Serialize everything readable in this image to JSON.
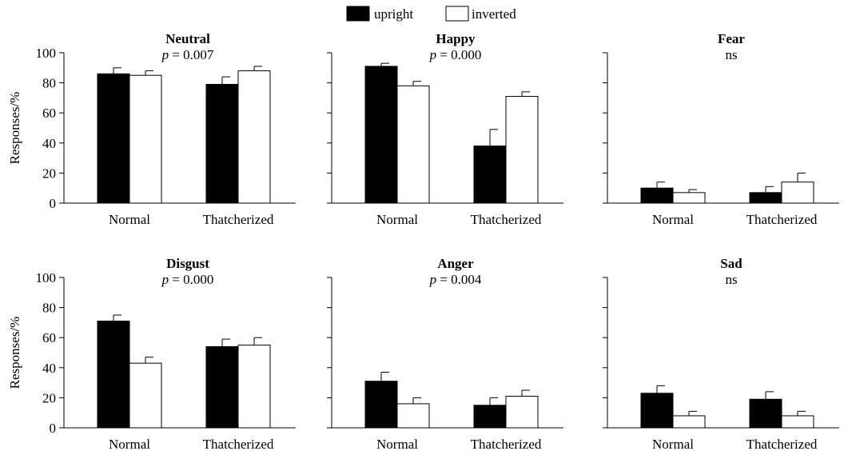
{
  "legend": [
    {
      "label": "upright",
      "color": "#000000"
    },
    {
      "label": "inverted",
      "color": "#ffffff"
    }
  ],
  "ylabel": "Responses/%",
  "chart_data": [
    {
      "type": "bar",
      "title": "Neutral",
      "subtitle_prefix": "p",
      "subtitle_value": " = 0.007",
      "categories": [
        "Normal",
        "Thatcherized"
      ],
      "series": [
        {
          "name": "upright",
          "values": [
            86,
            79
          ],
          "errors": [
            4,
            5
          ]
        },
        {
          "name": "inverted",
          "values": [
            85,
            88
          ],
          "errors": [
            3,
            3
          ]
        }
      ],
      "ylim": [
        0,
        100
      ],
      "yticks": [
        0,
        20,
        40,
        60,
        80,
        100
      ]
    },
    {
      "type": "bar",
      "title": "Happy",
      "subtitle_prefix": "p",
      "subtitle_value": " = 0.000",
      "categories": [
        "Normal",
        "Thatcherized"
      ],
      "series": [
        {
          "name": "upright",
          "values": [
            91,
            38
          ],
          "errors": [
            2,
            11
          ]
        },
        {
          "name": "inverted",
          "values": [
            78,
            71
          ],
          "errors": [
            3,
            3
          ]
        }
      ],
      "ylim": [
        0,
        100
      ],
      "yticks": [
        0,
        20,
        40,
        60,
        80,
        100
      ]
    },
    {
      "type": "bar",
      "title": "Fear",
      "subtitle_prefix": "",
      "subtitle_value": "ns",
      "categories": [
        "Normal",
        "Thatcherized"
      ],
      "series": [
        {
          "name": "upright",
          "values": [
            10,
            7
          ],
          "errors": [
            4,
            4
          ]
        },
        {
          "name": "inverted",
          "values": [
            7,
            14
          ],
          "errors": [
            2,
            6
          ]
        }
      ],
      "ylim": [
        0,
        100
      ],
      "yticks": [
        0,
        20,
        40,
        60,
        80,
        100
      ]
    },
    {
      "type": "bar",
      "title": "Disgust",
      "subtitle_prefix": "p",
      "subtitle_value": " = 0.000",
      "categories": [
        "Normal",
        "Thatcherized"
      ],
      "series": [
        {
          "name": "upright",
          "values": [
            71,
            54
          ],
          "errors": [
            4,
            5
          ]
        },
        {
          "name": "inverted",
          "values": [
            43,
            55
          ],
          "errors": [
            4,
            5
          ]
        }
      ],
      "ylim": [
        0,
        100
      ],
      "yticks": [
        0,
        20,
        40,
        60,
        80,
        100
      ]
    },
    {
      "type": "bar",
      "title": "Anger",
      "subtitle_prefix": "p",
      "subtitle_value": " = 0.004",
      "categories": [
        "Normal",
        "Thatcherized"
      ],
      "series": [
        {
          "name": "upright",
          "values": [
            31,
            15
          ],
          "errors": [
            6,
            5
          ]
        },
        {
          "name": "inverted",
          "values": [
            16,
            21
          ],
          "errors": [
            4,
            4
          ]
        }
      ],
      "ylim": [
        0,
        100
      ],
      "yticks": [
        0,
        20,
        40,
        60,
        80,
        100
      ]
    },
    {
      "type": "bar",
      "title": "Sad",
      "subtitle_prefix": "",
      "subtitle_value": "ns",
      "categories": [
        "Normal",
        "Thatcherized"
      ],
      "series": [
        {
          "name": "upright",
          "values": [
            23,
            19
          ],
          "errors": [
            5,
            5
          ]
        },
        {
          "name": "inverted",
          "values": [
            8,
            8
          ],
          "errors": [
            3,
            3
          ]
        }
      ],
      "ylim": [
        0,
        100
      ],
      "yticks": [
        0,
        20,
        40,
        60,
        80,
        100
      ]
    }
  ]
}
